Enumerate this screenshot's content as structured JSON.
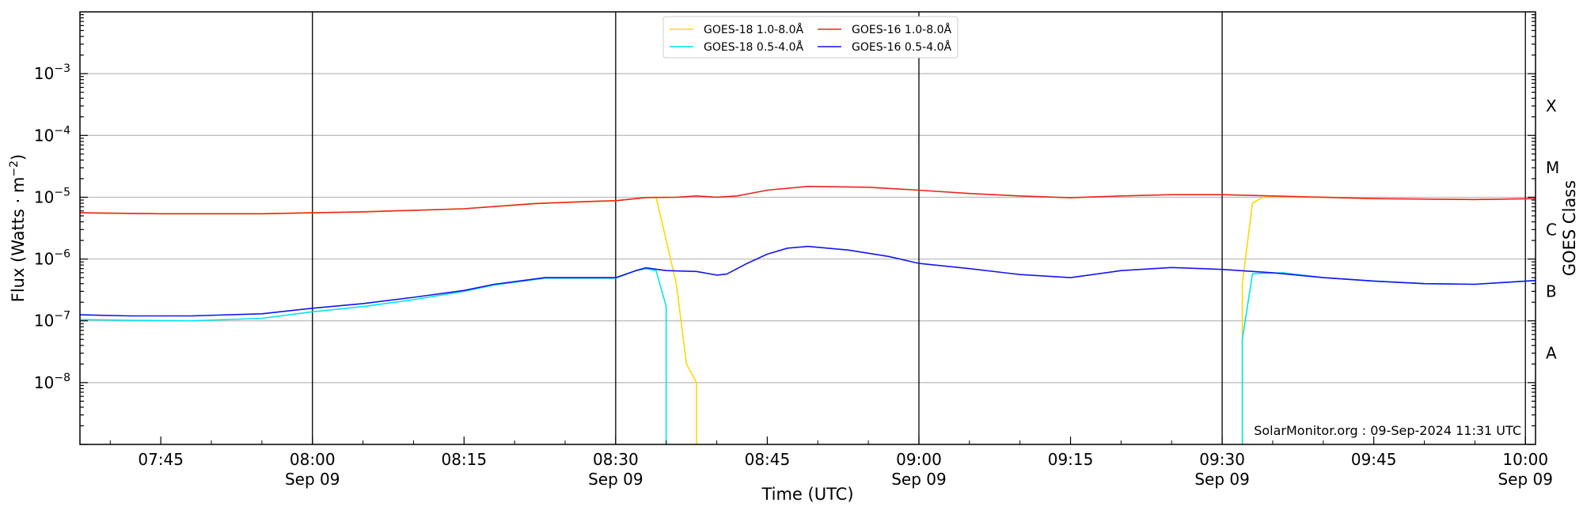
{
  "chart_data": {
    "type": "line",
    "xlabel": "Time (UTC)",
    "ylabel": "Flux (Watts · m",
    "ylabel_sup": "−2",
    "right_label": "GOES Class",
    "credit": "SolarMonitor.org : 09-Sep-2024 11:31 UTC",
    "yscale": "log",
    "xlim": [
      "07:37",
      "10:01"
    ],
    "ylim": [
      1e-09,
      0.01
    ],
    "x_ticks": [
      {
        "t": "07:45",
        "label": "07:45",
        "date": ""
      },
      {
        "t": "08:00",
        "label": "08:00",
        "date": "Sep 09"
      },
      {
        "t": "08:15",
        "label": "08:15",
        "date": ""
      },
      {
        "t": "08:30",
        "label": "08:30",
        "date": "Sep 09"
      },
      {
        "t": "08:45",
        "label": "08:45",
        "date": ""
      },
      {
        "t": "09:00",
        "label": "09:00",
        "date": "Sep 09"
      },
      {
        "t": "09:15",
        "label": "09:15",
        "date": ""
      },
      {
        "t": "09:30",
        "label": "09:30",
        "date": "Sep 09"
      },
      {
        "t": "09:45",
        "label": "09:45",
        "date": ""
      },
      {
        "t": "10:00",
        "label": "10:00",
        "date": "Sep 09"
      }
    ],
    "y_ticks": [
      {
        "v": 1e-08,
        "base": "10",
        "exp": "−8"
      },
      {
        "v": 1e-07,
        "base": "10",
        "exp": "−7"
      },
      {
        "v": 1e-06,
        "base": "10",
        "exp": "−6"
      },
      {
        "v": 1e-05,
        "base": "10",
        "exp": "−5"
      },
      {
        "v": 0.0001,
        "base": "10",
        "exp": "−4"
      },
      {
        "v": 0.001,
        "base": "10",
        "exp": "−3"
      }
    ],
    "day_lines": [
      "08:00",
      "08:30",
      "09:00",
      "09:30",
      "10:00"
    ],
    "goes_classes": [
      {
        "label": "A",
        "v": 3e-08
      },
      {
        "label": "B",
        "v": 3e-07
      },
      {
        "label": "C",
        "v": 3e-06
      },
      {
        "label": "M",
        "v": 3e-05
      },
      {
        "label": "X",
        "v": 0.0003
      }
    ],
    "series": [
      {
        "name": "GOES-18 1.0-8.0Å",
        "color": "#ffd700",
        "points": [
          [
            "07:37",
            5.6e-06
          ],
          [
            "07:45",
            5.4e-06
          ],
          [
            "07:55",
            5.4e-06
          ],
          [
            "08:05",
            5.8e-06
          ],
          [
            "08:15",
            6.5e-06
          ],
          [
            "08:22",
            7.9e-06
          ],
          [
            "08:30",
            8.8e-06
          ],
          [
            "08:33",
            9.9e-06
          ],
          [
            "08:34",
            1e-05
          ],
          [
            "08:35",
            2e-06
          ],
          [
            "08:36",
            4e-07
          ],
          [
            "08:37",
            2e-08
          ],
          [
            "08:38",
            1e-08
          ],
          [
            "08:38",
            1e-09
          ]
        ],
        "points2": [
          [
            "09:32",
            1e-09
          ],
          [
            "09:32",
            4e-07
          ],
          [
            "09:33",
            8e-06
          ],
          [
            "09:34",
            1e-05
          ],
          [
            "09:40",
            1e-05
          ],
          [
            "09:45",
            9.5e-06
          ],
          [
            "09:55",
            9.2e-06
          ],
          [
            "10:01",
            9.5e-06
          ]
        ]
      },
      {
        "name": "GOES-16 1.0-8.0Å",
        "color": "#e8261b",
        "points": [
          [
            "07:37",
            5.6e-06
          ],
          [
            "07:45",
            5.4e-06
          ],
          [
            "07:55",
            5.4e-06
          ],
          [
            "08:05",
            5.8e-06
          ],
          [
            "08:15",
            6.5e-06
          ],
          [
            "08:22",
            7.9e-06
          ],
          [
            "08:27",
            8.5e-06
          ],
          [
            "08:30",
            8.8e-06
          ],
          [
            "08:33",
            9.9e-06
          ],
          [
            "08:36",
            1e-05
          ],
          [
            "08:38",
            1.05e-05
          ],
          [
            "08:40",
            1e-05
          ],
          [
            "08:42",
            1.05e-05
          ],
          [
            "08:45",
            1.3e-05
          ],
          [
            "08:49",
            1.5e-05
          ],
          [
            "08:55",
            1.45e-05
          ],
          [
            "09:00",
            1.3e-05
          ],
          [
            "09:05",
            1.15e-05
          ],
          [
            "09:10",
            1.05e-05
          ],
          [
            "09:15",
            9.8e-06
          ],
          [
            "09:20",
            1.05e-05
          ],
          [
            "09:25",
            1.1e-05
          ],
          [
            "09:30",
            1.1e-05
          ],
          [
            "09:35",
            1.05e-05
          ],
          [
            "09:40",
            1e-05
          ],
          [
            "09:45",
            9.5e-06
          ],
          [
            "09:55",
            9.2e-06
          ],
          [
            "10:01",
            9.5e-06
          ]
        ]
      },
      {
        "name": "GOES-18 0.5-4.0Å",
        "color": "#00e5ee",
        "points": [
          [
            "07:37",
            1.05e-07
          ],
          [
            "07:42",
            1.02e-07
          ],
          [
            "07:48",
            1e-07
          ],
          [
            "07:55",
            1.1e-07
          ],
          [
            "08:00",
            1.4e-07
          ],
          [
            "08:05",
            1.7e-07
          ],
          [
            "08:10",
            2.2e-07
          ],
          [
            "08:15",
            3e-07
          ],
          [
            "08:18",
            3.8e-07
          ],
          [
            "08:23",
            4.9e-07
          ],
          [
            "08:27",
            4.9e-07
          ],
          [
            "08:30",
            4.9e-07
          ],
          [
            "08:32",
            6.5e-07
          ],
          [
            "08:33",
            7e-07
          ],
          [
            "08:34",
            6.5e-07
          ],
          [
            "08:35",
            1.7e-07
          ],
          [
            "08:35",
            1e-09
          ]
        ],
        "points2": [
          [
            "09:32",
            1e-09
          ],
          [
            "09:32",
            5e-08
          ],
          [
            "09:33",
            5.8e-07
          ],
          [
            "09:36",
            6e-07
          ],
          [
            "09:40",
            5e-07
          ],
          [
            "09:45",
            4.4e-07
          ],
          [
            "09:50",
            4e-07
          ],
          [
            "09:55",
            3.9e-07
          ],
          [
            "10:01",
            4.5e-07
          ]
        ]
      },
      {
        "name": "GOES-16 0.5-4.0Å",
        "color": "#1414f0",
        "points": [
          [
            "07:37",
            1.25e-07
          ],
          [
            "07:42",
            1.2e-07
          ],
          [
            "07:48",
            1.2e-07
          ],
          [
            "07:55",
            1.3e-07
          ],
          [
            "08:00",
            1.6e-07
          ],
          [
            "08:05",
            1.9e-07
          ],
          [
            "08:10",
            2.4e-07
          ],
          [
            "08:15",
            3.1e-07
          ],
          [
            "08:18",
            3.9e-07
          ],
          [
            "08:23",
            5e-07
          ],
          [
            "08:27",
            5e-07
          ],
          [
            "08:30",
            5e-07
          ],
          [
            "08:32",
            6.5e-07
          ],
          [
            "08:33",
            7.2e-07
          ],
          [
            "08:35",
            6.5e-07
          ],
          [
            "08:38",
            6.3e-07
          ],
          [
            "08:40",
            5.5e-07
          ],
          [
            "08:41",
            5.7e-07
          ],
          [
            "08:43",
            8.5e-07
          ],
          [
            "08:45",
            1.2e-06
          ],
          [
            "08:47",
            1.5e-06
          ],
          [
            "08:49",
            1.6e-06
          ],
          [
            "08:53",
            1.4e-06
          ],
          [
            "08:57",
            1.1e-06
          ],
          [
            "09:00",
            8.5e-07
          ],
          [
            "09:05",
            7e-07
          ],
          [
            "09:10",
            5.6e-07
          ],
          [
            "09:15",
            5e-07
          ],
          [
            "09:20",
            6.5e-07
          ],
          [
            "09:25",
            7.3e-07
          ],
          [
            "09:30",
            6.8e-07
          ],
          [
            "09:35",
            6e-07
          ],
          [
            "09:40",
            5e-07
          ],
          [
            "09:45",
            4.4e-07
          ],
          [
            "09:50",
            4e-07
          ],
          [
            "09:55",
            3.9e-07
          ],
          [
            "10:01",
            4.5e-07
          ]
        ]
      }
    ],
    "legend_order": [
      0,
      2,
      1,
      3
    ]
  }
}
